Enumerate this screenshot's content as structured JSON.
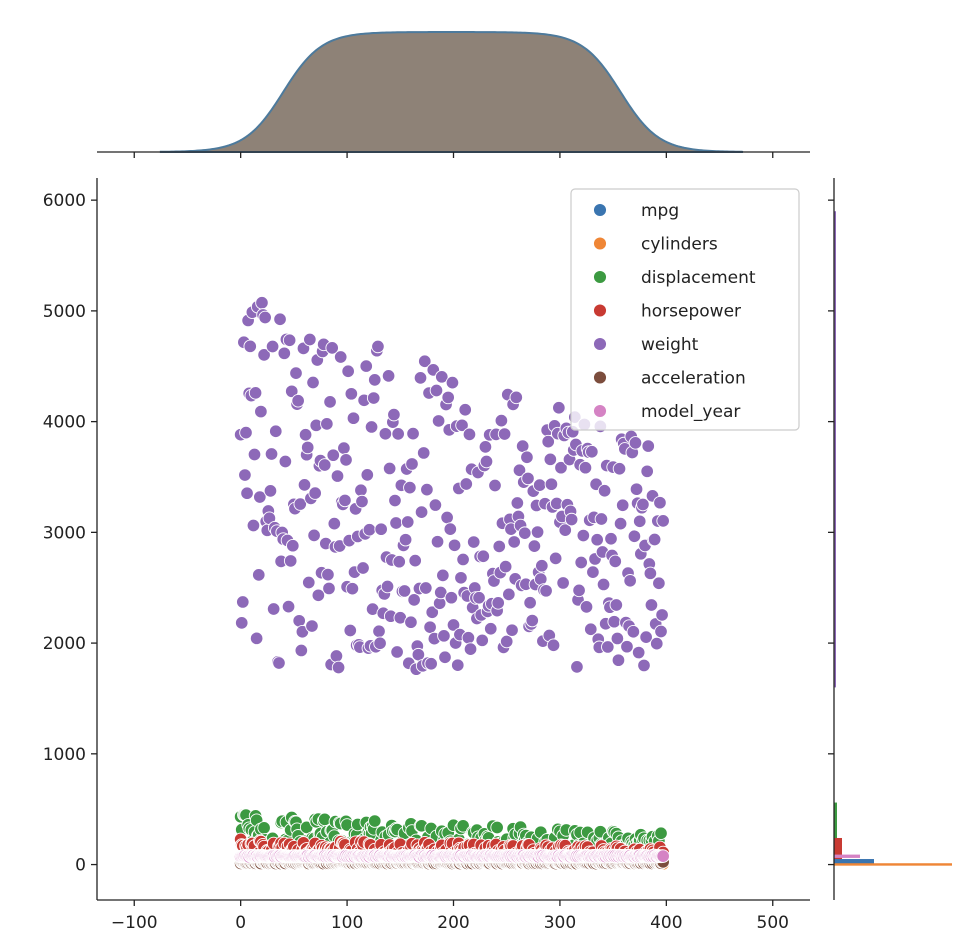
{
  "chart_data": {
    "type": "scatter",
    "title": "",
    "xlabel": "",
    "ylabel": "",
    "xlim": [
      -135,
      535
    ],
    "ylim": [
      -320,
      6200
    ],
    "x_ticks": [
      -100,
      0,
      100,
      200,
      300,
      400,
      500
    ],
    "y_ticks": [
      0,
      1000,
      2000,
      3000,
      4000,
      5000,
      6000
    ],
    "x_tick_labels": [
      "−100",
      "0",
      "100",
      "200",
      "300",
      "400",
      "500"
    ],
    "y_tick_labels": [
      "0",
      "1000",
      "2000",
      "3000",
      "4000",
      "5000",
      "6000"
    ],
    "grid": false,
    "legend_position": "top-right",
    "x_range_of_points": [
      0,
      397
    ],
    "series": [
      {
        "name": "mpg",
        "color": "#3a75b0",
        "y_range": [
          9,
          46.6
        ],
        "n_points": 398
      },
      {
        "name": "cylinders",
        "color": "#ef8636",
        "y_range": [
          3,
          8
        ],
        "n_points": 398
      },
      {
        "name": "displacement",
        "color": "#3c9a41",
        "y_range": [
          68,
          455
        ],
        "n_points": 398
      },
      {
        "name": "horsepower",
        "color": "#c83a32",
        "y_range": [
          46,
          230
        ],
        "n_points": 398
      },
      {
        "name": "weight",
        "color": "#8d69b8",
        "y_range": [
          1613,
          5140
        ],
        "n_points": 398
      },
      {
        "name": "acceleration",
        "color": "#7c4d3d",
        "y_range": [
          8,
          24.8
        ],
        "n_points": 398
      },
      {
        "name": "model_year",
        "color": "#d583c4",
        "y_range": [
          70,
          82
        ],
        "n_points": 398
      }
    ],
    "top_marginal": {
      "type": "kde",
      "fill_color": "#8e8277",
      "line_color": "#4d7a9c",
      "x_support": [
        -15,
        412
      ]
    },
    "right_marginal": {
      "type": "histogram",
      "orientation": "horizontal"
    }
  }
}
